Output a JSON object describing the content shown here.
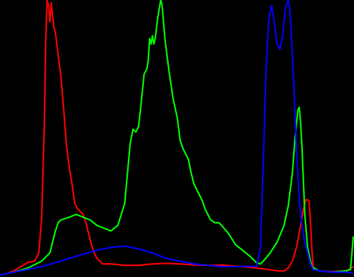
{
  "chart_data": {
    "type": "line",
    "background": "#000000",
    "grid": false,
    "axes": false,
    "legend": false,
    "xlim": [
      0,
      255
    ],
    "ylim": [
      0,
      100
    ],
    "series": [
      {
        "key": "red",
        "color": "#ff0000",
        "points": [
          [
            0,
            0
          ],
          [
            5,
            0.5
          ],
          [
            10,
            1.5
          ],
          [
            15,
            3
          ],
          [
            20,
            4.5
          ],
          [
            25,
            5
          ],
          [
            28,
            8
          ],
          [
            30,
            20
          ],
          [
            32,
            55
          ],
          [
            33,
            85
          ],
          [
            34,
            100
          ],
          [
            35,
            98
          ],
          [
            36,
            92
          ],
          [
            37,
            99
          ],
          [
            38,
            94
          ],
          [
            39,
            90
          ],
          [
            40,
            88
          ],
          [
            42,
            80
          ],
          [
            44,
            72
          ],
          [
            46,
            60
          ],
          [
            48,
            47
          ],
          [
            50,
            39
          ],
          [
            52,
            33
          ],
          [
            54,
            26
          ],
          [
            56,
            24
          ],
          [
            58,
            23
          ],
          [
            60,
            22
          ],
          [
            62,
            19
          ],
          [
            64,
            15
          ],
          [
            66,
            11
          ],
          [
            68,
            8
          ],
          [
            70,
            6
          ],
          [
            72,
            5
          ],
          [
            74,
            4
          ],
          [
            80,
            4
          ],
          [
            90,
            3.5
          ],
          [
            100,
            3.5
          ],
          [
            110,
            4
          ],
          [
            120,
            4.2
          ],
          [
            130,
            4
          ],
          [
            140,
            3.6
          ],
          [
            150,
            3.5
          ],
          [
            160,
            3.6
          ],
          [
            170,
            3.2
          ],
          [
            180,
            2.8
          ],
          [
            190,
            2.2
          ],
          [
            200,
            1.5
          ],
          [
            205,
            1.4
          ],
          [
            208,
            2.5
          ],
          [
            211,
            5
          ],
          [
            214,
            10
          ],
          [
            217,
            18
          ],
          [
            219,
            24
          ],
          [
            221,
            27.5
          ],
          [
            223,
            27
          ],
          [
            224,
            20
          ],
          [
            225,
            10
          ],
          [
            226,
            3
          ],
          [
            227,
            2
          ],
          [
            230,
            1.5
          ],
          [
            240,
            1.2
          ],
          [
            250,
            1.5
          ],
          [
            255,
            3
          ]
        ]
      },
      {
        "key": "green",
        "color": "#00ff00",
        "points": [
          [
            0,
            0
          ],
          [
            10,
            1
          ],
          [
            20,
            2.5
          ],
          [
            30,
            5
          ],
          [
            36,
            8
          ],
          [
            38,
            12
          ],
          [
            40,
            16
          ],
          [
            42,
            19
          ],
          [
            44,
            20
          ],
          [
            50,
            21
          ],
          [
            55,
            22
          ],
          [
            60,
            21
          ],
          [
            65,
            20
          ],
          [
            70,
            18
          ],
          [
            75,
            17
          ],
          [
            80,
            16
          ],
          [
            85,
            18
          ],
          [
            90,
            26
          ],
          [
            92,
            37
          ],
          [
            94,
            48
          ],
          [
            96,
            53
          ],
          [
            98,
            52
          ],
          [
            100,
            54
          ],
          [
            102,
            63
          ],
          [
            104,
            73
          ],
          [
            106,
            75
          ],
          [
            107,
            78
          ],
          [
            108,
            86
          ],
          [
            109,
            84
          ],
          [
            110,
            87
          ],
          [
            111,
            84
          ],
          [
            112,
            86
          ],
          [
            113,
            90
          ],
          [
            114,
            94
          ],
          [
            115,
            97
          ],
          [
            116,
            100
          ],
          [
            117,
            98
          ],
          [
            118,
            92
          ],
          [
            119,
            86
          ],
          [
            120,
            82
          ],
          [
            122,
            74
          ],
          [
            125,
            64
          ],
          [
            128,
            57
          ],
          [
            130,
            49
          ],
          [
            132,
            46
          ],
          [
            134,
            44
          ],
          [
            136,
            42
          ],
          [
            138,
            37
          ],
          [
            140,
            33
          ],
          [
            142,
            31
          ],
          [
            144,
            29
          ],
          [
            146,
            27
          ],
          [
            148,
            24
          ],
          [
            150,
            22
          ],
          [
            152,
            20
          ],
          [
            155,
            19
          ],
          [
            158,
            19
          ],
          [
            160,
            18
          ],
          [
            165,
            15
          ],
          [
            170,
            11
          ],
          [
            175,
            9
          ],
          [
            180,
            7
          ],
          [
            185,
            4.5
          ],
          [
            188,
            4
          ],
          [
            190,
            5
          ],
          [
            195,
            8
          ],
          [
            200,
            12
          ],
          [
            205,
            18
          ],
          [
            208,
            25
          ],
          [
            211,
            37
          ],
          [
            213,
            50
          ],
          [
            215,
            60
          ],
          [
            216,
            61
          ],
          [
            217,
            55
          ],
          [
            218,
            46
          ],
          [
            219,
            34
          ],
          [
            220,
            22
          ],
          [
            222,
            10
          ],
          [
            225,
            3
          ],
          [
            230,
            1.5
          ],
          [
            240,
            1
          ],
          [
            250,
            1.5
          ],
          [
            253,
            2
          ],
          [
            254,
            8
          ],
          [
            255,
            14
          ]
        ]
      },
      {
        "key": "blue",
        "color": "#0000ff",
        "points": [
          [
            0,
            0
          ],
          [
            10,
            1
          ],
          [
            20,
            2
          ],
          [
            30,
            3
          ],
          [
            40,
            4.5
          ],
          [
            50,
            6
          ],
          [
            60,
            7.5
          ],
          [
            70,
            9
          ],
          [
            80,
            10
          ],
          [
            90,
            10.5
          ],
          [
            100,
            9.5
          ],
          [
            110,
            8
          ],
          [
            120,
            6
          ],
          [
            130,
            5
          ],
          [
            140,
            4
          ],
          [
            150,
            3.5
          ],
          [
            160,
            3
          ],
          [
            170,
            3
          ],
          [
            180,
            3.2
          ],
          [
            185,
            3
          ],
          [
            188,
            10
          ],
          [
            190,
            40
          ],
          [
            192,
            75
          ],
          [
            194,
            93
          ],
          [
            196,
            98
          ],
          [
            198,
            92
          ],
          [
            200,
            84
          ],
          [
            202,
            82
          ],
          [
            204,
            87
          ],
          [
            206,
            97
          ],
          [
            208,
            100
          ],
          [
            209,
            97
          ],
          [
            210,
            90
          ],
          [
            212,
            70
          ],
          [
            214,
            45
          ],
          [
            216,
            27
          ],
          [
            218,
            18
          ],
          [
            220,
            12
          ],
          [
            222,
            8
          ],
          [
            224,
            4
          ],
          [
            226,
            2
          ],
          [
            230,
            1.5
          ],
          [
            240,
            1
          ],
          [
            250,
            1
          ],
          [
            255,
            0.5
          ]
        ]
      }
    ]
  }
}
